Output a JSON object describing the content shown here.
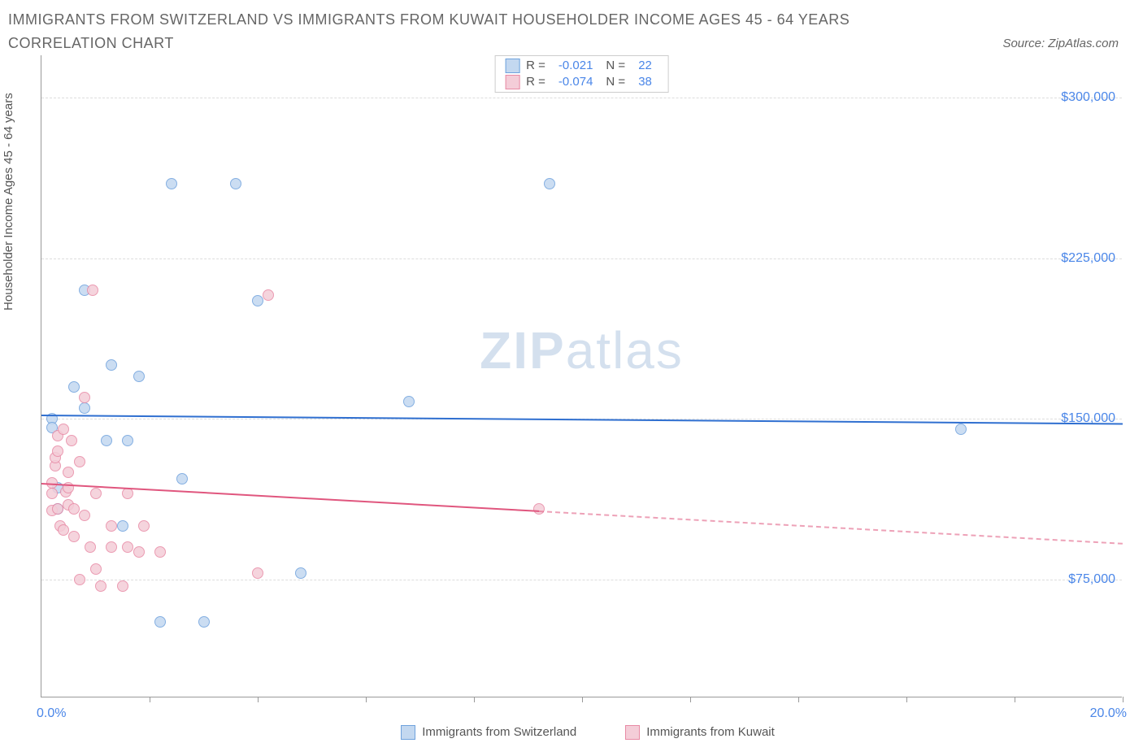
{
  "title": "IMMIGRANTS FROM SWITZERLAND VS IMMIGRANTS FROM KUWAIT HOUSEHOLDER INCOME AGES 45 - 64 YEARS CORRELATION CHART",
  "source": "Source: ZipAtlas.com",
  "ylabel": "Householder Income Ages 45 - 64 years",
  "watermark_a": "ZIP",
  "watermark_b": "atlas",
  "chart": {
    "type": "scatter",
    "xlim": [
      0,
      20
    ],
    "ylim": [
      20000,
      320000
    ],
    "xticks_pct": [
      10,
      20,
      30,
      40,
      50,
      60,
      70,
      80,
      90,
      100
    ],
    "xlabel_min": "0.0%",
    "xlabel_max": "20.0%",
    "yticks": [
      {
        "v": 75000,
        "label": "$75,000"
      },
      {
        "v": 150000,
        "label": "$150,000"
      },
      {
        "v": 225000,
        "label": "$225,000"
      },
      {
        "v": 300000,
        "label": "$300,000"
      }
    ],
    "grid_color": "#dddddd",
    "axis_color": "#999999",
    "background_color": "#ffffff",
    "marker_radius": 7,
    "marker_border": 1
  },
  "series": [
    {
      "key": "switzerland",
      "label": "Immigrants from Switzerland",
      "fill": "#c3d8f0",
      "stroke": "#6fa2dd",
      "line_color": "#2f6fd0",
      "R_label": "R =",
      "R": "-0.021",
      "N_label": "N =",
      "N": "22",
      "trend": {
        "x0": 0,
        "y0": 152000,
        "x1": 20,
        "y1": 148000,
        "dash_from_x": null
      },
      "points": [
        {
          "x": 0.2,
          "y": 150000
        },
        {
          "x": 0.2,
          "y": 146000
        },
        {
          "x": 0.3,
          "y": 118000
        },
        {
          "x": 0.3,
          "y": 108000
        },
        {
          "x": 0.6,
          "y": 165000
        },
        {
          "x": 0.8,
          "y": 155000
        },
        {
          "x": 0.8,
          "y": 210000
        },
        {
          "x": 1.2,
          "y": 140000
        },
        {
          "x": 1.3,
          "y": 175000
        },
        {
          "x": 1.5,
          "y": 100000
        },
        {
          "x": 1.6,
          "y": 140000
        },
        {
          "x": 1.8,
          "y": 170000
        },
        {
          "x": 2.2,
          "y": 55000
        },
        {
          "x": 2.4,
          "y": 260000
        },
        {
          "x": 2.6,
          "y": 122000
        },
        {
          "x": 3.0,
          "y": 55000
        },
        {
          "x": 3.6,
          "y": 260000
        },
        {
          "x": 4.0,
          "y": 205000
        },
        {
          "x": 4.8,
          "y": 78000
        },
        {
          "x": 6.8,
          "y": 158000
        },
        {
          "x": 9.4,
          "y": 260000
        },
        {
          "x": 17.0,
          "y": 145000
        }
      ]
    },
    {
      "key": "kuwait",
      "label": "Immigrants from Kuwait",
      "fill": "#f4cdd8",
      "stroke": "#e88aa5",
      "line_color": "#e0567e",
      "R_label": "R =",
      "R": "-0.074",
      "N_label": "N =",
      "N": "38",
      "trend": {
        "x0": 0,
        "y0": 120000,
        "x1": 20,
        "y1": 92000,
        "dash_from_x": 9.2
      },
      "points": [
        {
          "x": 0.2,
          "y": 107000
        },
        {
          "x": 0.2,
          "y": 115000
        },
        {
          "x": 0.2,
          "y": 120000
        },
        {
          "x": 0.25,
          "y": 128000
        },
        {
          "x": 0.25,
          "y": 132000
        },
        {
          "x": 0.3,
          "y": 135000
        },
        {
          "x": 0.3,
          "y": 142000
        },
        {
          "x": 0.3,
          "y": 108000
        },
        {
          "x": 0.35,
          "y": 100000
        },
        {
          "x": 0.4,
          "y": 145000
        },
        {
          "x": 0.45,
          "y": 116000
        },
        {
          "x": 0.5,
          "y": 110000
        },
        {
          "x": 0.5,
          "y": 118000
        },
        {
          "x": 0.55,
          "y": 140000
        },
        {
          "x": 0.6,
          "y": 95000
        },
        {
          "x": 0.7,
          "y": 130000
        },
        {
          "x": 0.7,
          "y": 75000
        },
        {
          "x": 0.8,
          "y": 160000
        },
        {
          "x": 0.8,
          "y": 105000
        },
        {
          "x": 0.9,
          "y": 90000
        },
        {
          "x": 0.95,
          "y": 210000
        },
        {
          "x": 1.0,
          "y": 115000
        },
        {
          "x": 1.0,
          "y": 80000
        },
        {
          "x": 1.1,
          "y": 72000
        },
        {
          "x": 1.3,
          "y": 90000
        },
        {
          "x": 1.3,
          "y": 100000
        },
        {
          "x": 1.5,
          "y": 72000
        },
        {
          "x": 1.6,
          "y": 90000
        },
        {
          "x": 1.6,
          "y": 115000
        },
        {
          "x": 1.8,
          "y": 88000
        },
        {
          "x": 1.9,
          "y": 100000
        },
        {
          "x": 2.2,
          "y": 88000
        },
        {
          "x": 4.0,
          "y": 78000
        },
        {
          "x": 4.2,
          "y": 208000
        },
        {
          "x": 9.2,
          "y": 108000
        },
        {
          "x": 0.5,
          "y": 125000
        },
        {
          "x": 0.6,
          "y": 108000
        },
        {
          "x": 0.4,
          "y": 98000
        }
      ]
    }
  ]
}
